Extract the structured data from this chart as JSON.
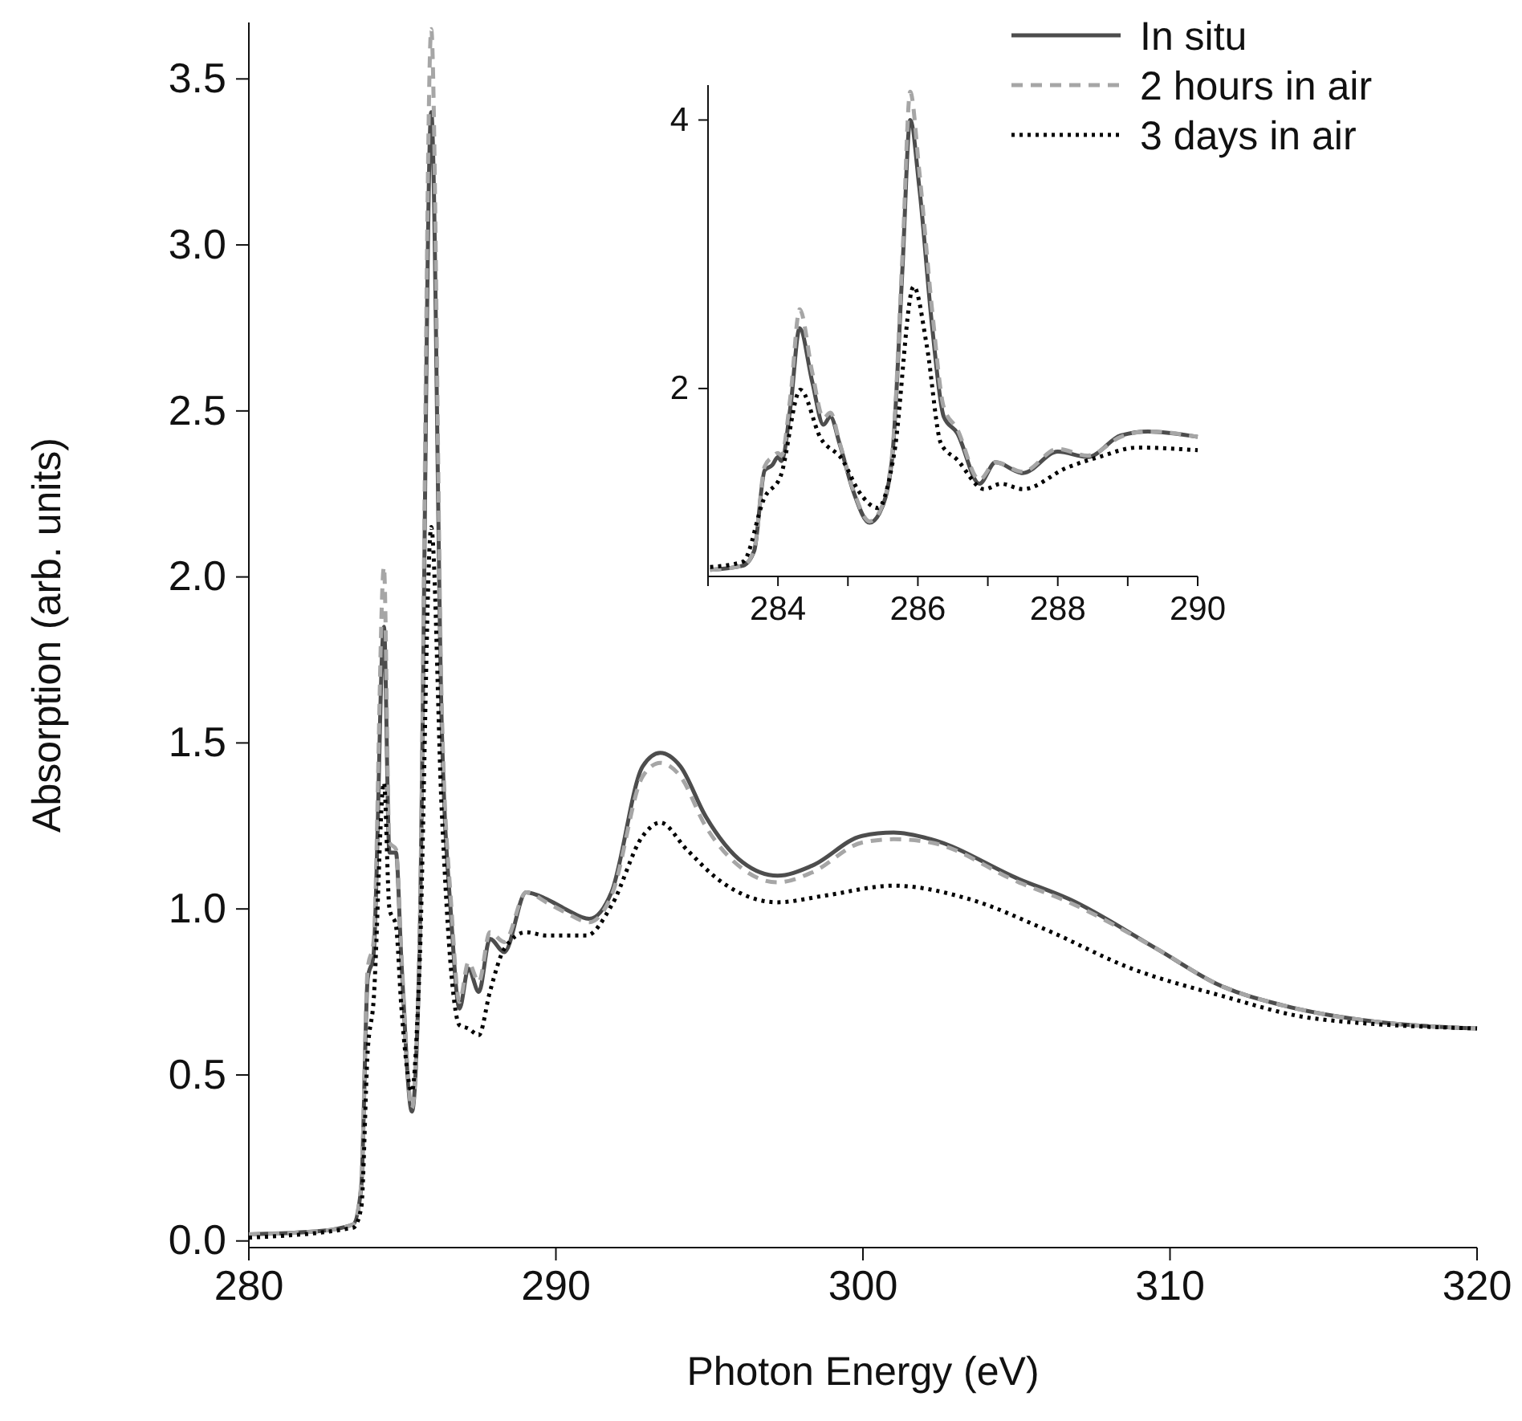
{
  "chart_data": [
    {
      "type": "line",
      "xlabel": "Photon Energy (eV)",
      "ylabel": "Absorption (arb. units)",
      "xlim": [
        280,
        320
      ],
      "xticks": [
        280,
        290,
        300,
        310,
        320
      ],
      "ylim": [
        -0.02,
        3.67
      ],
      "yticks": [
        {
          "value": 0,
          "label": "0.0"
        },
        {
          "value": 0.5,
          "label": "0.5"
        },
        {
          "value": 1,
          "label": "1.0"
        },
        {
          "value": 1.5,
          "label": "1.5"
        },
        {
          "value": 2,
          "label": "2.0"
        },
        {
          "value": 2.5,
          "label": "2.5"
        },
        {
          "value": 3,
          "label": "3.0"
        },
        {
          "value": 3.5,
          "label": "3.5"
        }
      ],
      "grid": false,
      "legend": "top right",
      "marker": "none",
      "series": [
        {
          "name": "In situ",
          "color": "#4d4d4d",
          "line_style": "solid",
          "x": [
            280,
            282.36,
            283.4,
            283.66,
            283.87,
            284.06,
            284.4,
            284.58,
            284.79,
            284.97,
            285.31,
            285.55,
            285.94,
            286.28,
            286.6,
            286.86,
            287.15,
            287.49,
            287.85,
            288.32,
            289.03,
            289.69,
            290.3,
            291.09,
            291.81,
            292.83,
            293.4,
            294.05,
            294.87,
            296.09,
            297.22,
            298.34,
            299.97,
            301,
            302.22,
            305.08,
            306.71,
            309.57,
            311.62,
            313.66,
            316.72,
            320
          ],
          "values": [
            0.02,
            0.03,
            0.05,
            0.16,
            0.79,
            0.86,
            1.85,
            1.17,
            1.17,
            0.84,
            0.39,
            0.84,
            3.4,
            1.56,
            0.96,
            0.7,
            0.82,
            0.75,
            0.91,
            0.87,
            1.05,
            1.03,
            1,
            0.97,
            1.05,
            1.43,
            1.47,
            1.43,
            1.28,
            1.14,
            1.1,
            1.13,
            1.22,
            1.23,
            1.21,
            1.09,
            1.03,
            0.88,
            0.77,
            0.71,
            0.66,
            0.64
          ]
        },
        {
          "name": "2 hours in air",
          "color": "#a6a6a6",
          "line_style": "dashed",
          "x": [
            280,
            282.36,
            283.4,
            283.66,
            283.87,
            284.06,
            284.4,
            284.58,
            284.79,
            284.97,
            285.31,
            285.55,
            285.94,
            286.28,
            286.6,
            286.86,
            287.15,
            287.49,
            287.85,
            288.32,
            289.03,
            289.69,
            290.3,
            291.09,
            291.81,
            292.83,
            293.4,
            294.05,
            294.87,
            296.09,
            297.22,
            298.34,
            299.97,
            301,
            302.22,
            305.08,
            306.71,
            309.57,
            311.62,
            313.66,
            316.72,
            320
          ],
          "values": [
            0.02,
            0.03,
            0.05,
            0.17,
            0.82,
            0.9,
            2.03,
            1.2,
            1.18,
            0.86,
            0.4,
            0.86,
            3.65,
            1.62,
            1,
            0.72,
            0.84,
            0.78,
            0.93,
            0.9,
            1.05,
            1.02,
            0.99,
            0.96,
            1.04,
            1.4,
            1.44,
            1.4,
            1.25,
            1.12,
            1.08,
            1.11,
            1.2,
            1.21,
            1.2,
            1.08,
            1.02,
            0.88,
            0.77,
            0.71,
            0.66,
            0.64
          ]
        },
        {
          "name": "3 days in air",
          "color": "#000000",
          "line_style": "dotted",
          "x": [
            280,
            283.4,
            283.66,
            283.87,
            284.06,
            284.4,
            284.58,
            284.79,
            284.97,
            285.31,
            285.55,
            285.94,
            286.28,
            286.6,
            286.86,
            287.15,
            287.49,
            287.85,
            288.32,
            289.03,
            289.69,
            291,
            291.81,
            292.83,
            293.4,
            294.25,
            295.27,
            297.22,
            298.75,
            301,
            303.45,
            305.9,
            308.76,
            311.62,
            314.7,
            320
          ],
          "values": [
            0.01,
            0.04,
            0.1,
            0.57,
            0.72,
            1.38,
            1,
            0.95,
            0.7,
            0.45,
            0.8,
            2.15,
            1.3,
            0.8,
            0.65,
            0.64,
            0.62,
            0.75,
            0.88,
            0.93,
            0.92,
            0.92,
            1.01,
            1.22,
            1.26,
            1.18,
            1.09,
            1.02,
            1.04,
            1.07,
            1.03,
            0.94,
            0.82,
            0.74,
            0.67,
            0.64
          ]
        }
      ]
    },
    {
      "type": "line",
      "xlim": [
        283,
        290
      ],
      "xticks": [
        {
          "value": 283,
          "label": null
        },
        284,
        {
          "value": 285,
          "label": null
        },
        286,
        {
          "value": 287,
          "label": null
        },
        288,
        {
          "value": 289,
          "label": null
        },
        290
      ],
      "ylim": [
        0.6,
        4.26
      ],
      "yticks": [
        2,
        4
      ],
      "grid": false,
      "marker": "none",
      "series": [
        {
          "color": "#4d4d4d",
          "line_style": "solid",
          "x": [
            283.03,
            283.5,
            283.66,
            283.81,
            283.92,
            284,
            284.05,
            284.18,
            284.31,
            284.49,
            284.65,
            284.75,
            284.88,
            285.08,
            285.31,
            285.45,
            285.63,
            285.78,
            285.89,
            286.02,
            286.21,
            286.37,
            286.56,
            286.88,
            287.11,
            287.5,
            288,
            288.43,
            288.9,
            289.29,
            290
          ],
          "values": [
            0.65,
            0.68,
            0.79,
            1.39,
            1.43,
            1.49,
            1.46,
            1.87,
            2.45,
            2.05,
            1.73,
            1.79,
            1.59,
            1.23,
            1,
            1.07,
            1.47,
            2.9,
            4,
            3.5,
            2.43,
            1.79,
            1.67,
            1.29,
            1.45,
            1.37,
            1.53,
            1.49,
            1.65,
            1.68,
            1.64
          ]
        },
        {
          "color": "#a6a6a6",
          "line_style": "dashed",
          "x": [
            283.03,
            283.5,
            283.66,
            283.81,
            283.92,
            284,
            284.05,
            284.18,
            284.31,
            284.49,
            284.65,
            284.75,
            284.88,
            285.08,
            285.31,
            285.45,
            285.63,
            285.78,
            285.89,
            286.02,
            286.21,
            286.37,
            286.56,
            286.88,
            287.11,
            287.5,
            288,
            288.43,
            288.9,
            289.29,
            290
          ],
          "values": [
            0.65,
            0.68,
            0.8,
            1.42,
            1.49,
            1.52,
            1.5,
            1.95,
            2.59,
            2.12,
            1.78,
            1.82,
            1.6,
            1.24,
            1.01,
            1.08,
            1.5,
            3,
            4.21,
            3.62,
            2.55,
            1.86,
            1.7,
            1.32,
            1.45,
            1.38,
            1.55,
            1.5,
            1.64,
            1.68,
            1.64
          ]
        },
        {
          "color": "#000000",
          "line_style": "dotted",
          "x": [
            283.03,
            283.5,
            283.81,
            284.04,
            284.32,
            284.61,
            284.92,
            285.16,
            285.43,
            285.66,
            285.94,
            286.13,
            286.33,
            286.56,
            286.95,
            287.19,
            287.5,
            288.13,
            288.59,
            289.14,
            290
          ],
          "values": [
            0.67,
            0.71,
            1.19,
            1.35,
            1.99,
            1.63,
            1.47,
            1.23,
            1.11,
            1.51,
            2.76,
            2.31,
            1.59,
            1.47,
            1.25,
            1.29,
            1.25,
            1.41,
            1.49,
            1.56,
            1.54
          ]
        }
      ]
    }
  ]
}
